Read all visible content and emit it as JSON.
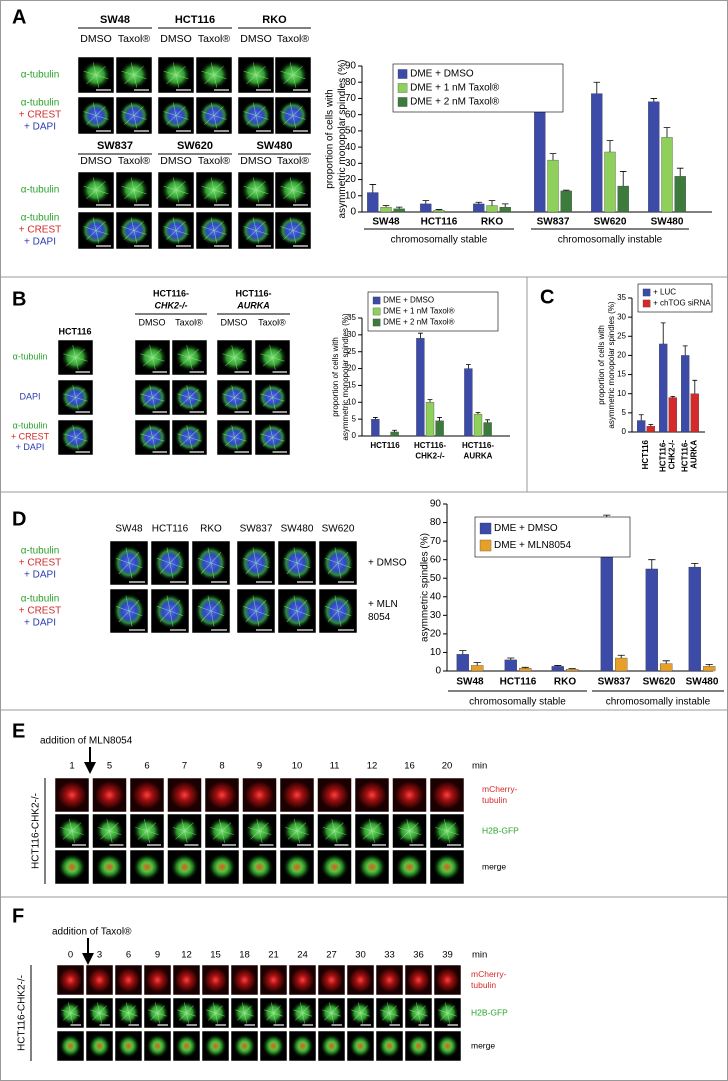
{
  "chart_data": [
    {
      "type": "bar",
      "ylabel": [
        "proportion of cells with",
        "asymmetric monopolar spindles (%)"
      ],
      "categories": [
        [
          "SW48"
        ],
        [
          "HCT116"
        ],
        [
          "RKO"
        ],
        [
          "SW837"
        ],
        [
          "SW620"
        ],
        [
          "SW480"
        ]
      ],
      "group_labels": [
        "chromosomally stable",
        "chromosomally instable"
      ],
      "series": [
        {
          "name": "DME + DMSO",
          "color": "#3c4aa8",
          "values": [
            12,
            5,
            5,
            64,
            73,
            68
          ],
          "errors": [
            5,
            2,
            1,
            8,
            7,
            2
          ]
        },
        {
          "name": "DME + 1 nM Taxol®",
          "color": "#8fcf5c",
          "values": [
            3,
            1,
            4,
            32,
            37,
            46
          ],
          "errors": [
            1,
            0.5,
            3,
            4,
            7,
            6
          ]
        },
        {
          "name": "DME + 2 nM Taxol®",
          "color": "#3d7b3d",
          "values": [
            2,
            0,
            3,
            13,
            16,
            22
          ],
          "errors": [
            1,
            0,
            2,
            0.5,
            9,
            5
          ]
        }
      ],
      "ylim": [
        0,
        90
      ],
      "yticks": [
        0,
        10,
        20,
        30,
        40,
        50,
        60,
        70,
        80,
        90
      ]
    },
    {
      "type": "bar",
      "ylabel": [
        "proportion of cells with",
        "asymmetric monopolar spindles (%)"
      ],
      "categories": [
        [
          "HCT116"
        ],
        [
          "HCT116-",
          "CHK2-/-"
        ],
        [
          "HCT116-",
          "AURKA"
        ]
      ],
      "series": [
        {
          "name": "DME + DMSO",
          "color": "#3c4aa8",
          "values": [
            5,
            29,
            20
          ],
          "errors": [
            0.5,
            1.5,
            1.2
          ]
        },
        {
          "name": "DME + 1 nM Taxol®",
          "color": "#8fcf5c",
          "values": [
            0,
            10,
            6.5
          ],
          "errors": [
            0,
            0.8,
            0.5
          ]
        },
        {
          "name": "DME + 2 nM Taxol®",
          "color": "#3d7b3d",
          "values": [
            1.2,
            4.5,
            4
          ],
          "errors": [
            0.5,
            1,
            0.8
          ]
        }
      ],
      "ylim": [
        0,
        35
      ],
      "yticks": [
        0,
        5,
        10,
        15,
        20,
        25,
        30,
        35
      ]
    },
    {
      "type": "bar",
      "ylabel": [
        "proportion of cells with",
        "asymmetric monopolar spindles (%)"
      ],
      "categories": [
        [
          "HCT116"
        ],
        [
          "HCT116-",
          "CHK2-/-"
        ],
        [
          "HCT116-",
          "AURKA"
        ]
      ],
      "series": [
        {
          "name": "+ LUC",
          "color": "#3c4aa8",
          "values": [
            3,
            23,
            20
          ],
          "errors": [
            1.5,
            5.5,
            2.5
          ]
        },
        {
          "name": "+ chTOG siRNA",
          "color": "#d62a2a",
          "values": [
            1.5,
            9,
            10
          ],
          "errors": [
            0.5,
            0.3,
            3.5
          ]
        }
      ],
      "ylim": [
        0,
        35
      ],
      "yticks": [
        0,
        5,
        10,
        15,
        20,
        25,
        30,
        35
      ]
    },
    {
      "type": "bar",
      "ylabel": [
        "asymmetric spindles (%)"
      ],
      "categories": [
        [
          "SW48"
        ],
        [
          "HCT116"
        ],
        [
          "RKO"
        ],
        [
          "SW837"
        ],
        [
          "SW620"
        ],
        [
          "SW480"
        ]
      ],
      "group_labels": [
        "chromosomally stable",
        "chromosomally instable"
      ],
      "series": [
        {
          "name": "DME + DMSO",
          "color": "#3c4aa8",
          "values": [
            9,
            6,
            2.5,
            78,
            55,
            56
          ],
          "errors": [
            2,
            1,
            0.5,
            6,
            5,
            2
          ]
        },
        {
          "name": "DME + MLN8054",
          "color": "#e6a02a",
          "values": [
            3,
            1.5,
            1,
            7,
            4,
            2.5
          ],
          "errors": [
            1.5,
            0.5,
            0.3,
            1.5,
            1.5,
            1
          ]
        }
      ],
      "ylim": [
        0,
        90
      ],
      "yticks": [
        0,
        10,
        20,
        30,
        40,
        50,
        60,
        70,
        80,
        90
      ]
    }
  ],
  "panel_letters": [
    "A",
    "B",
    "C",
    "D",
    "E",
    "F"
  ],
  "panel_a": {
    "cell_lines": [
      [
        "SW48",
        "HCT116",
        "RKO"
      ],
      [
        "SW837",
        "SW620",
        "SW480"
      ]
    ],
    "treatments": [
      "DMSO",
      "Taxol®"
    ],
    "row_labels": [
      [
        {
          "text": "α-tubulin",
          "color": "#2aa32a"
        }
      ],
      [
        {
          "text": "α-tubulin",
          "color": "#2aa32a"
        },
        {
          "text": "+ CREST",
          "color": "#d62a2a"
        },
        {
          "text": "+ DAPI",
          "color": "#2b3bb0"
        }
      ]
    ]
  },
  "panel_b": {
    "control": "HCT116",
    "groups": [
      [
        "HCT116-",
        "CHK2-/-"
      ],
      [
        "HCT116-",
        "AURKA"
      ]
    ],
    "treatments": [
      "DMSO",
      "Taxol®"
    ],
    "row_labels": [
      [
        {
          "text": "α-tubulin",
          "color": "#2aa32a"
        }
      ],
      [
        {
          "text": "DAPI",
          "color": "#2b3bb0"
        }
      ],
      [
        {
          "text": "α-tubulin",
          "color": "#2aa32a"
        },
        {
          "text": "+ CREST",
          "color": "#d62a2a"
        },
        {
          "text": "+ DAPI",
          "color": "#2b3bb0"
        }
      ]
    ]
  },
  "panel_d": {
    "cell_lines": [
      "SW48",
      "HCT116",
      "RKO",
      "SW837",
      "SW480",
      "SW620"
    ],
    "row_labels": [
      [
        {
          "text": "α-tubulin",
          "color": "#2aa32a"
        },
        {
          "text": "+ CREST",
          "color": "#d62a2a"
        },
        {
          "text": "+ DAPI",
          "color": "#2b3bb0"
        }
      ],
      [
        {
          "text": "α-tubulin",
          "color": "#2aa32a"
        },
        {
          "text": "+ CREST",
          "color": "#d62a2a"
        },
        {
          "text": "+ DAPI",
          "color": "#2b3bb0"
        }
      ]
    ],
    "conditions": [
      [
        "+ DMSO"
      ],
      [
        "+ MLN",
        "8054"
      ]
    ]
  },
  "panel_e": {
    "annotation": "addition of MLN8054",
    "times": [
      "1",
      "5",
      "6",
      "7",
      "8",
      "9",
      "10",
      "11",
      "12",
      "16",
      "20"
    ],
    "unit": "min",
    "cell_line": "HCT116-CHK2-/-",
    "channels": [
      {
        "lines": [
          "mCherry-",
          "tubulin"
        ],
        "color": "#d62a2a"
      },
      {
        "lines": [
          "H2B-GFP"
        ],
        "color": "#2aa32a"
      },
      {
        "lines": [
          "merge"
        ],
        "color": "#000000"
      }
    ]
  },
  "panel_f": {
    "annotation": "addition of Taxol®",
    "times": [
      "0",
      "3",
      "6",
      "9",
      "12",
      "15",
      "18",
      "21",
      "24",
      "27",
      "30",
      "33",
      "36",
      "39"
    ],
    "unit": "min",
    "cell_line": "HCT116-CHK2-/-",
    "channels": [
      {
        "lines": [
          "mCherry-",
          "tubulin"
        ],
        "color": "#d62a2a"
      },
      {
        "lines": [
          "H2B-GFP"
        ],
        "color": "#2aa32a"
      },
      {
        "lines": [
          "merge"
        ],
        "color": "#000000"
      }
    ]
  }
}
